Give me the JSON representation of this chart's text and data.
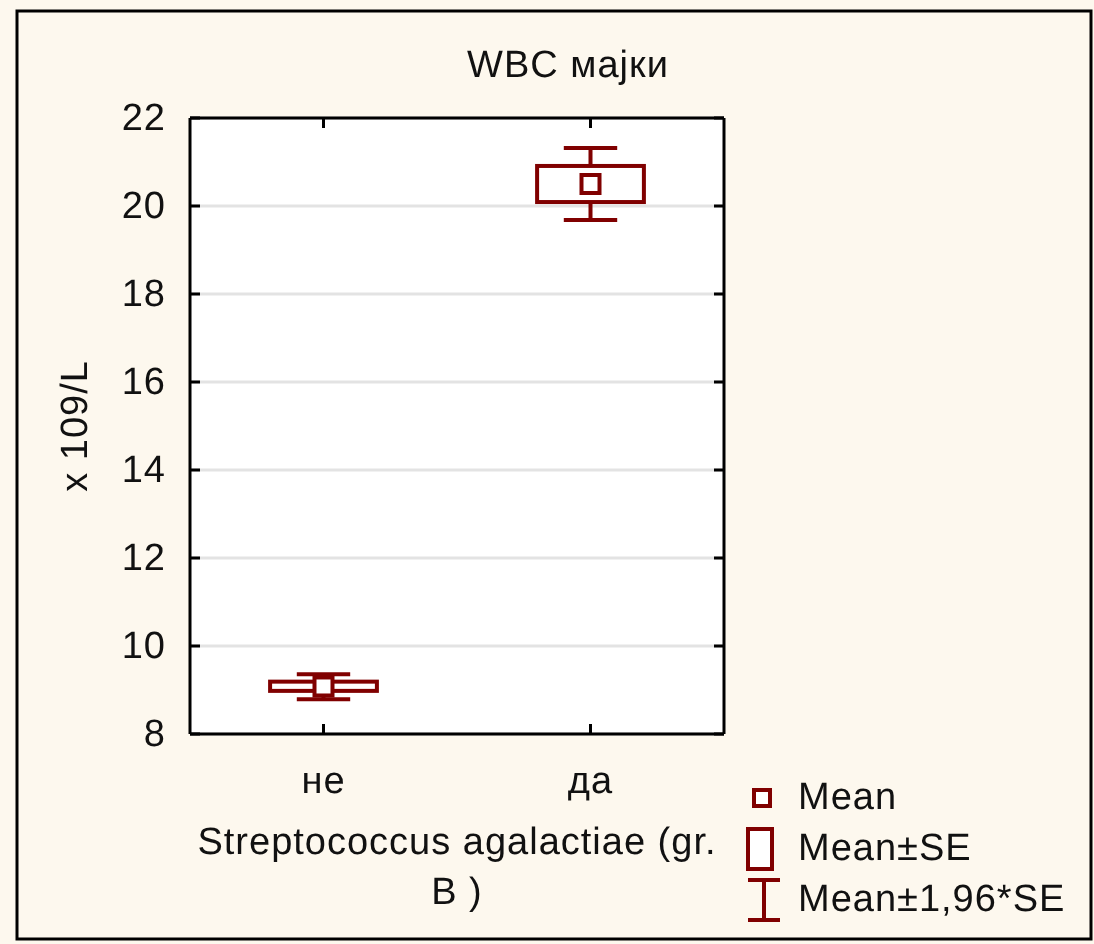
{
  "chart_data": {
    "type": "box",
    "title": "WBC мајки",
    "xlabel": "Streptococcus agalactiae (gr. B )",
    "ylabel": "x 109/L",
    "categories": [
      "не",
      "да"
    ],
    "color": "#800000",
    "boxes": [
      {
        "low": 8.79,
        "q1": 8.98,
        "q3": 9.19,
        "high": 9.36,
        "mean": 9.08
      },
      {
        "low": 19.68,
        "q1": 20.09,
        "q3": 20.91,
        "high": 21.32,
        "mean": 20.5
      }
    ],
    "annotations": [
      "Mean",
      "Mean±SE",
      "Mean±1,96*SE"
    ],
    "ylim": [
      8,
      22
    ],
    "yticks": [
      8,
      10,
      12,
      14,
      16,
      18,
      20,
      22
    ],
    "grid": "y",
    "marker": "square"
  }
}
